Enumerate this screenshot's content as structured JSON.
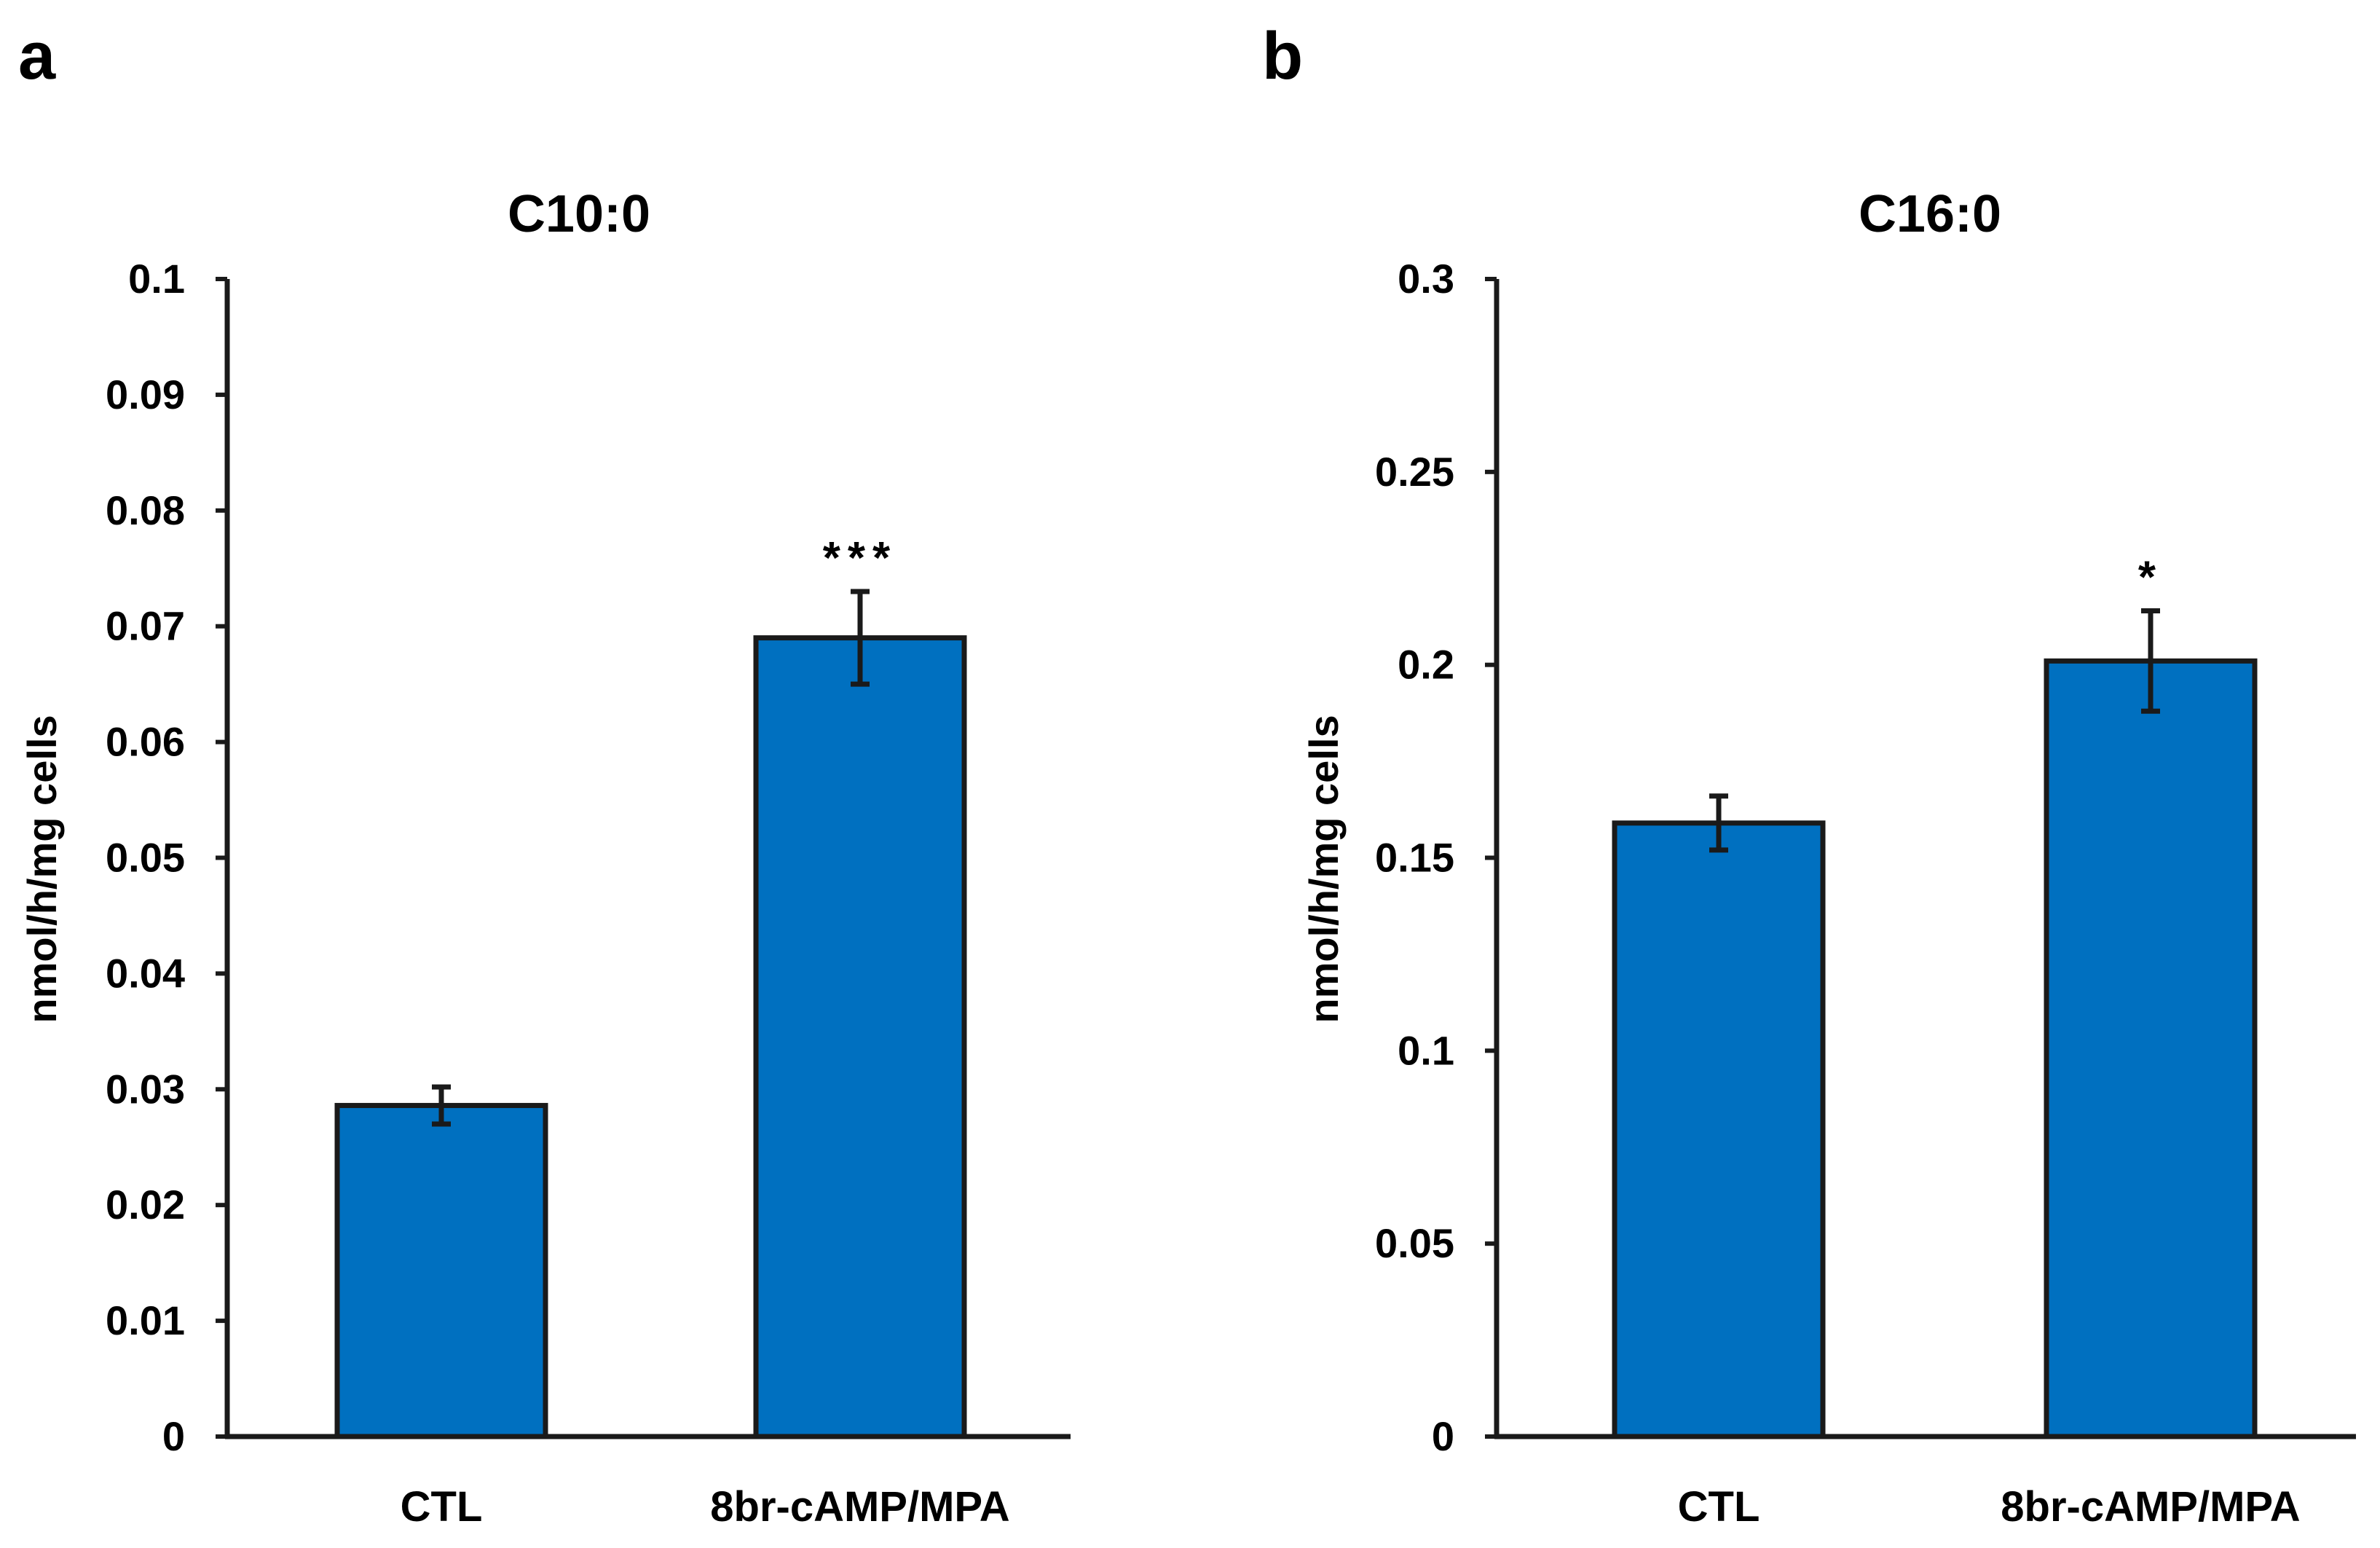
{
  "figure": {
    "colors": {
      "bar_fill": "#0070C0",
      "bar_stroke": "#1a1a1a",
      "axis": "#1a1a1a",
      "text": "#000000"
    }
  },
  "chart_data": [
    {
      "panel_label": "a",
      "type": "bar",
      "title": "C10:0",
      "xlabel": "",
      "ylabel": "nmol/h/mg cells",
      "ylim": [
        0,
        0.1
      ],
      "y_ticks": [
        0,
        0.01,
        0.02,
        0.03,
        0.04,
        0.05,
        0.06,
        0.07,
        0.08,
        0.09,
        0.1
      ],
      "y_tick_labels": [
        "0",
        "0.01",
        "0.02",
        "0.03",
        "0.04",
        "0.05",
        "0.06",
        "0.07",
        "0.08",
        "0.09",
        "0.1"
      ],
      "categories": [
        "CTL",
        "8br-cAMP/MPA"
      ],
      "values": [
        0.0286,
        0.069
      ],
      "errors": [
        0.0016,
        0.004
      ],
      "significance": [
        "",
        "***"
      ],
      "grid": false,
      "legend": "none"
    },
    {
      "panel_label": "b",
      "type": "bar",
      "title": "C16:0",
      "xlabel": "",
      "ylabel": "nmol/h/mg cells",
      "ylim": [
        0,
        0.3
      ],
      "y_ticks": [
        0,
        0.05,
        0.1,
        0.15,
        0.2,
        0.25,
        0.3
      ],
      "y_tick_labels": [
        "0",
        "0.05",
        "0.1",
        "0.15",
        "0.2",
        "0.25",
        "0.3"
      ],
      "categories": [
        "CTL",
        "8br-cAMP/MPA"
      ],
      "values": [
        0.159,
        0.201
      ],
      "errors": [
        0.007,
        0.013
      ],
      "significance": [
        "",
        "*"
      ],
      "grid": false,
      "legend": "none"
    }
  ]
}
